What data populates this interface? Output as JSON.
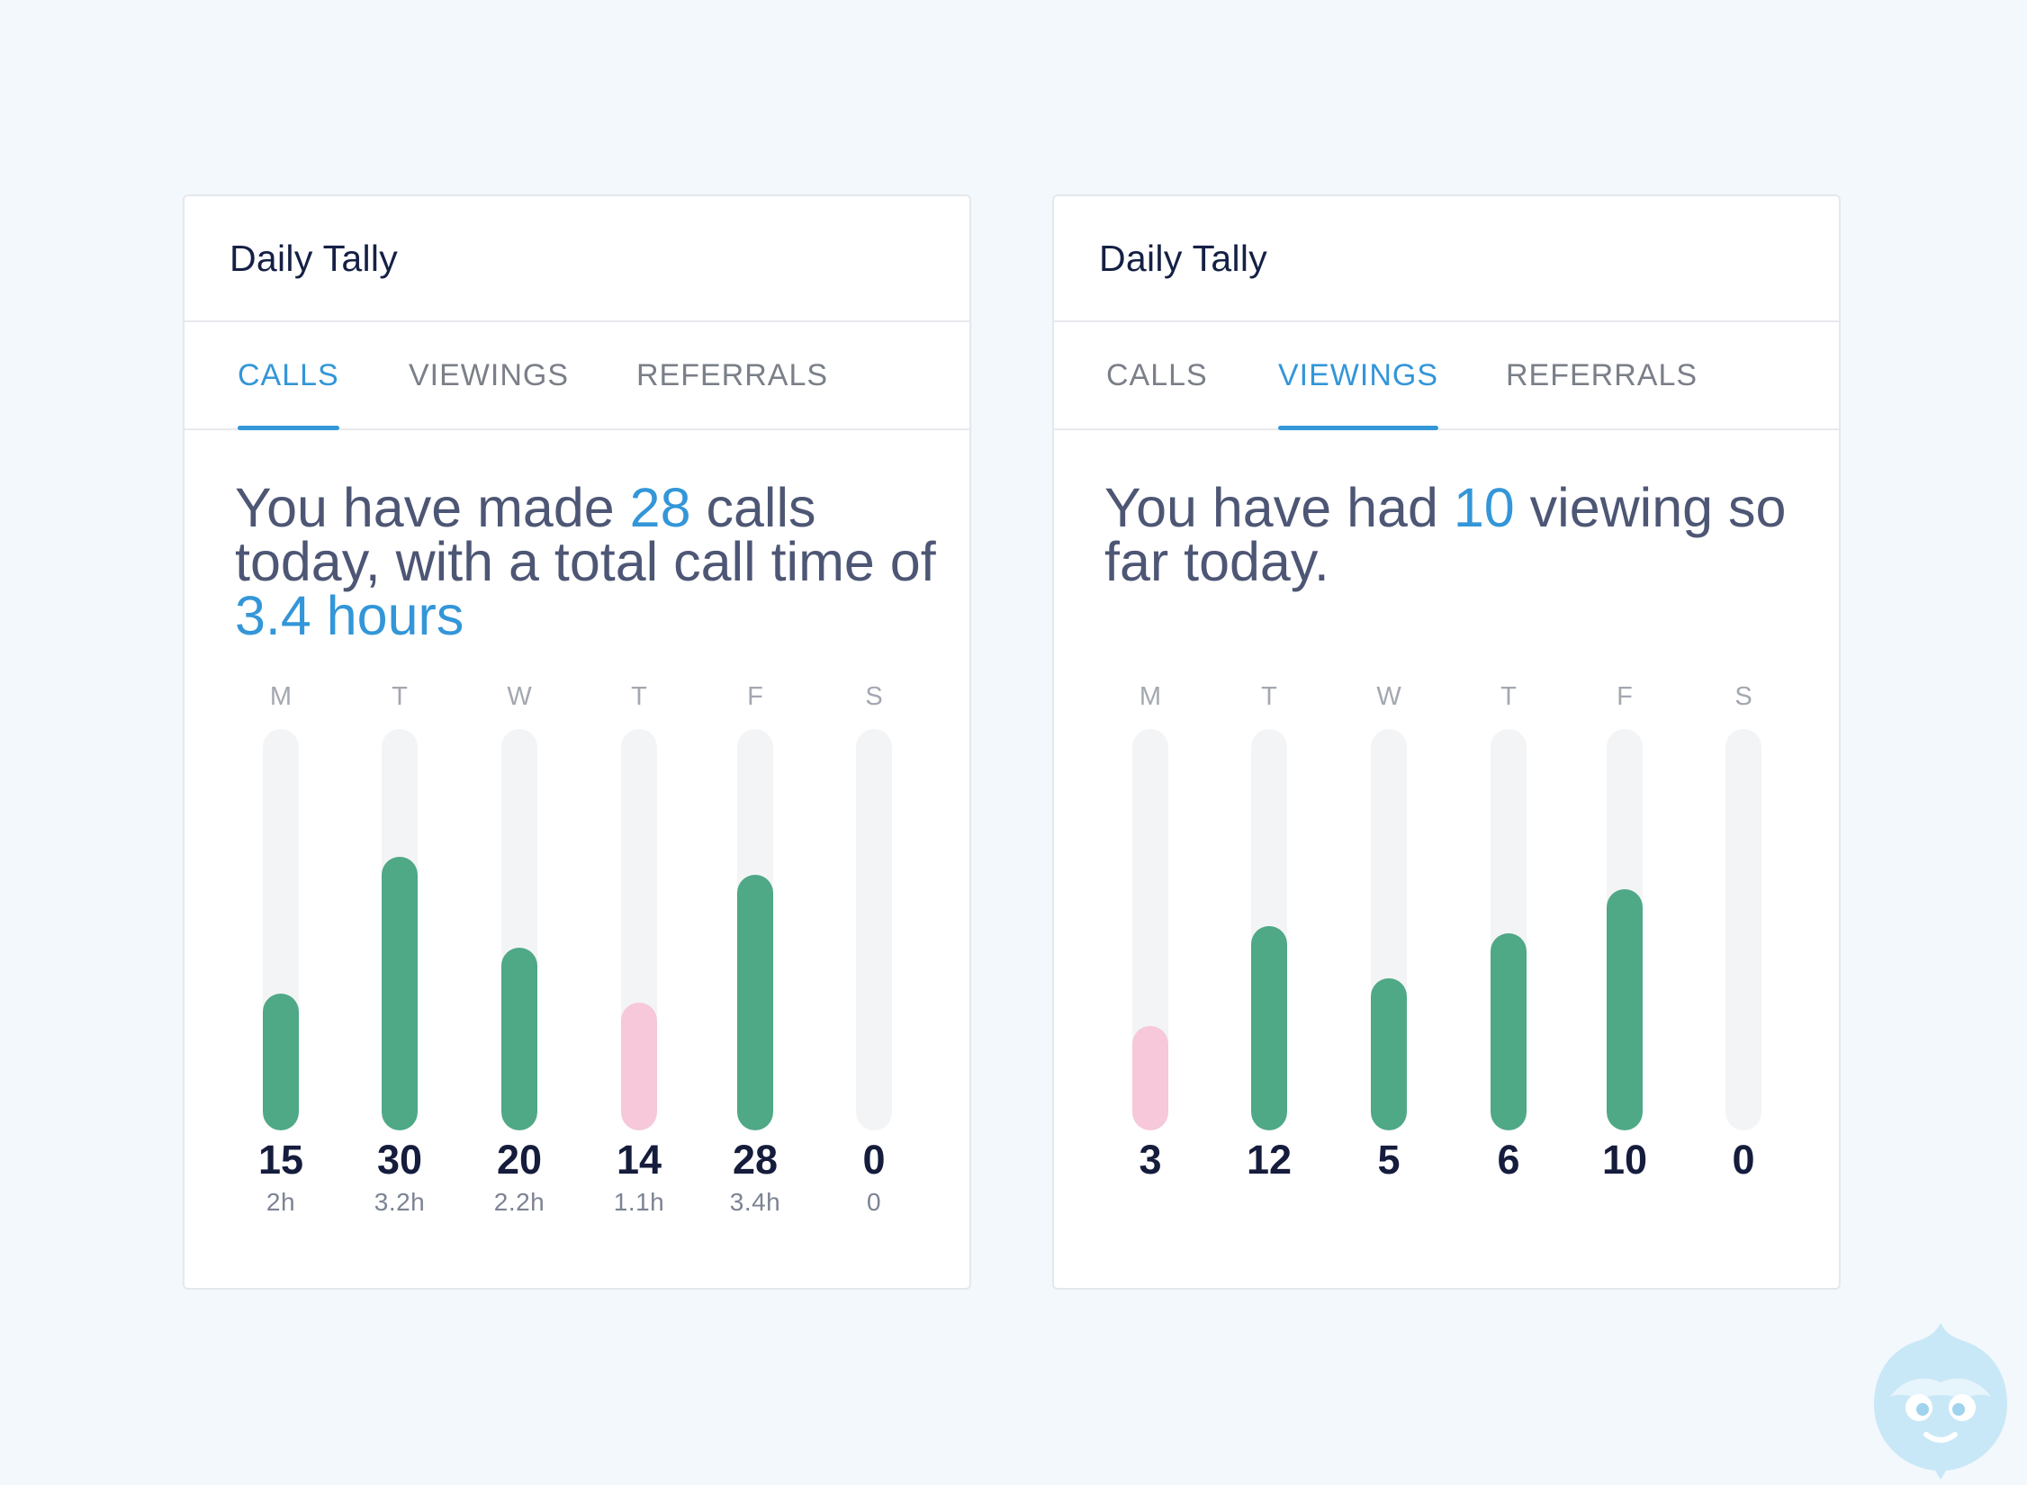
{
  "colors": {
    "accent": "#3396d8",
    "bar_normal": "#4fa886",
    "bar_low": "#f6c8d9",
    "track": "#f3f4f6",
    "background": "#f2f8fc"
  },
  "cards": [
    {
      "title": "Daily Tally",
      "tabs": [
        {
          "label": "CALLS",
          "active": true
        },
        {
          "label": "VIEWINGS",
          "active": false
        },
        {
          "label": "REFERRALS",
          "active": false
        }
      ],
      "headline": {
        "p1": "You have made ",
        "n1": "28",
        "p2": " calls today, with a total call time of ",
        "n2": "3.4 hours"
      },
      "chart_data": {
        "type": "bar",
        "categories": [
          "M",
          "T",
          "W",
          "T",
          "F",
          "S"
        ],
        "values": [
          15,
          30,
          20,
          14,
          28,
          0
        ],
        "sublabels": [
          "2h",
          "3.2h",
          "2.2h",
          "1.1h",
          "3.4h",
          "0"
        ],
        "highlight_low": [
          false,
          false,
          false,
          true,
          false,
          false
        ],
        "ylim": [
          0,
          44
        ]
      }
    },
    {
      "title": "Daily Tally",
      "tabs": [
        {
          "label": "CALLS",
          "active": false
        },
        {
          "label": "VIEWINGS",
          "active": true
        },
        {
          "label": "REFERRALS",
          "active": false
        }
      ],
      "headline": {
        "p1": "You have had ",
        "n1": "10",
        "p2": " viewing so far today.",
        "n2": ""
      },
      "chart_data": {
        "type": "bar",
        "categories": [
          "M",
          "T",
          "W",
          "T",
          "F",
          "S"
        ],
        "values": [
          3,
          12,
          5,
          6,
          10,
          0
        ],
        "sublabels": [],
        "highlight_low": [
          true,
          false,
          false,
          false,
          false,
          false
        ],
        "bar_levels": [
          0.26,
          0.51,
          0.38,
          0.49,
          0.6,
          0
        ]
      }
    }
  ],
  "mascot": {
    "icon": "mascot-face-icon"
  }
}
